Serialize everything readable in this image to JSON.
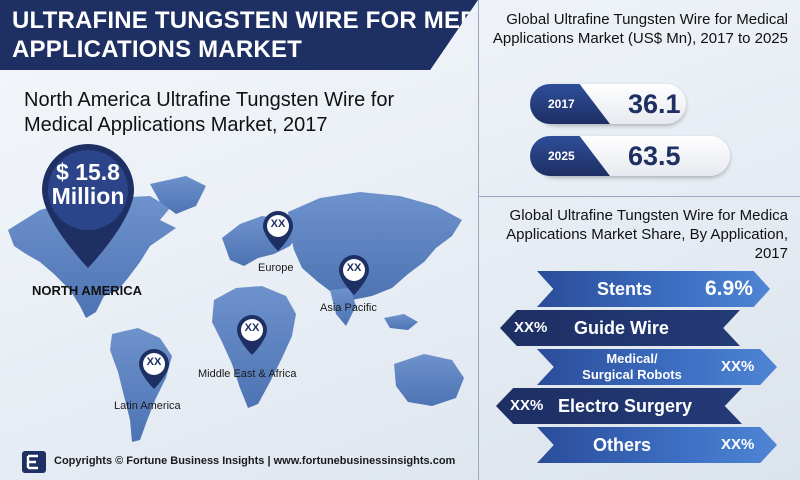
{
  "header": {
    "title_line1": "ULTRAFINE TUNGSTEN WIRE FOR MEDICAL",
    "title_line2": "APPLICATIONS MARKET"
  },
  "north_america": {
    "title": "North America Ultrafine Tungsten Wire for Medical Applications Market, 2017",
    "value": "$ 15.8",
    "unit": "Million",
    "label": "NORTH AMERICA"
  },
  "regions": [
    {
      "name": "Europe",
      "value": "XX"
    },
    {
      "name": "Asia Pacific",
      "value": "XX"
    },
    {
      "name": "Middle East & Africa",
      "value": "XX"
    },
    {
      "name": "Latin America",
      "value": "XX"
    }
  ],
  "global_market": {
    "title": "Global Ultrafine Tungsten Wire for Medical Applications Market (US$ Mn), 2017 to 2025",
    "years": [
      {
        "year": "2017",
        "value": "36.1"
      },
      {
        "year": "2025",
        "value": "63.5"
      }
    ]
  },
  "application_share": {
    "title": "Global Ultrafine Tungsten Wire for Medica  Applications Market Share, By Application, 2017",
    "items": [
      {
        "label": "Stents",
        "value": "6.9%"
      },
      {
        "label": "Guide Wire",
        "value": "XX%"
      },
      {
        "label": "Medical/ Surgical Robots",
        "line1": "Medical/",
        "line2": "Surgical Robots",
        "value": "XX%"
      },
      {
        "label": "Electro Surgery",
        "value": "XX%"
      },
      {
        "label": "Others",
        "value": "XX%"
      }
    ]
  },
  "footer": {
    "text": "Copyrights © Fortune Business Insights | www.fortunebusinessinsights.com"
  },
  "colors": {
    "navy": "#1d2f63",
    "blue": "#3d6fc2",
    "map": "#5f84c0"
  }
}
